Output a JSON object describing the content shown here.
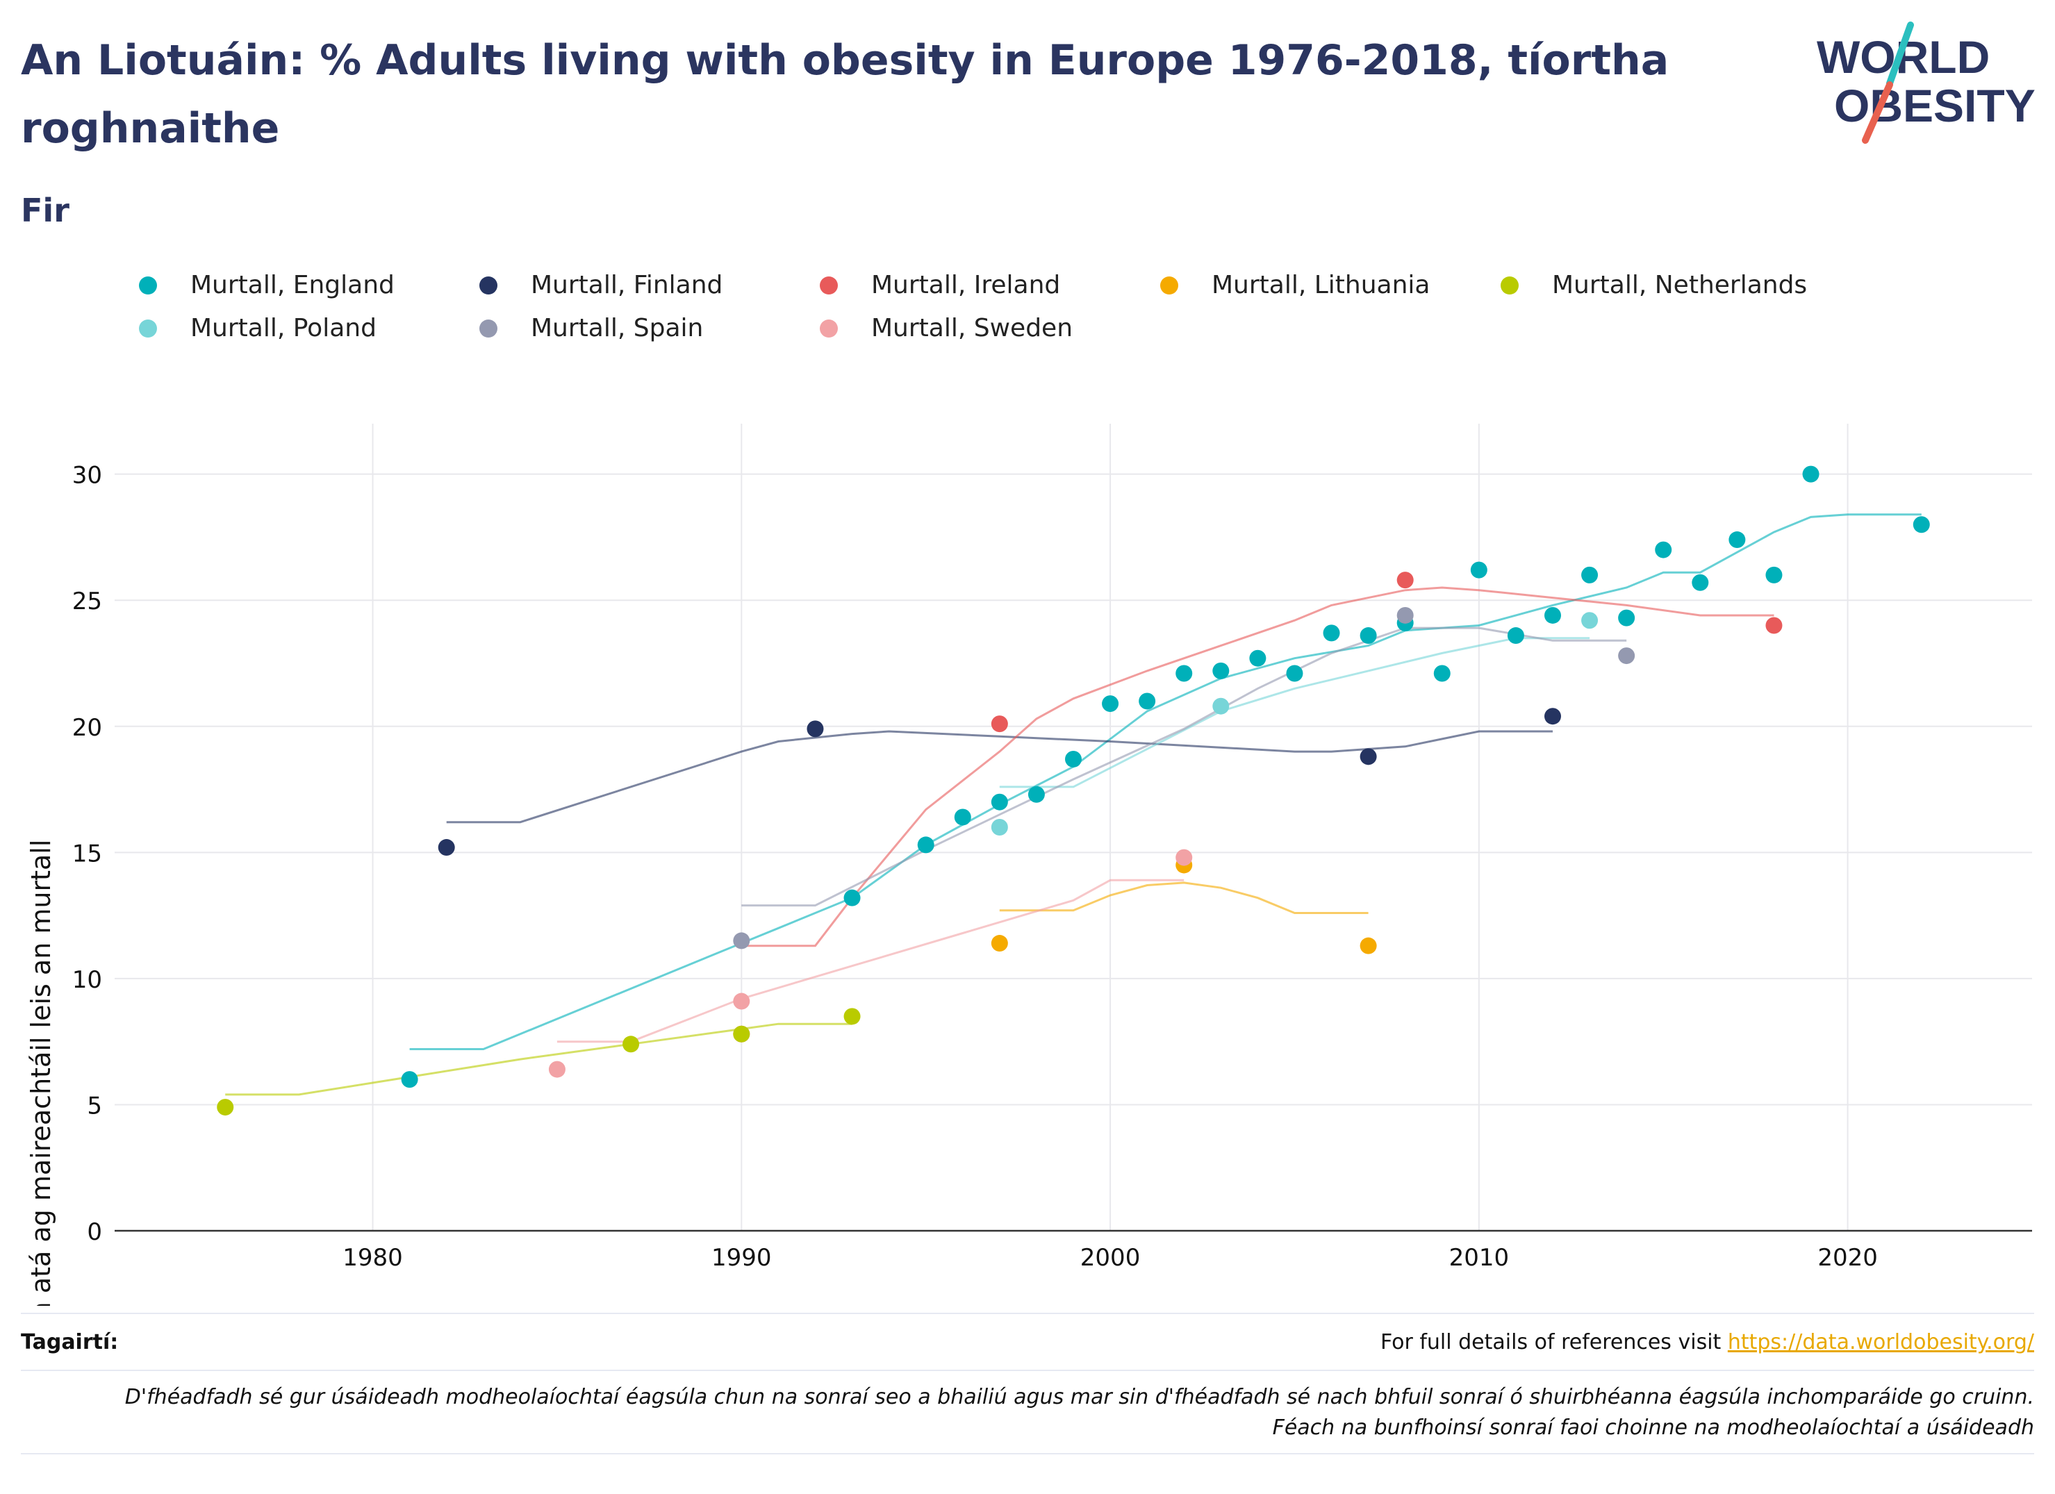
{
  "title": "An Liotuáin: % Adults living with obesity in Europe 1976-2018, tíortha roghnaithe",
  "subtitle": "Fir",
  "logo": {
    "line1": "WORLD",
    "line2": "OBESITY"
  },
  "references": {
    "label": "Tagairtí:",
    "text": "For full details of references visit ",
    "link": "https://data.worldobesity.org/"
  },
  "disclaimer": {
    "line1": "D'fhéadfadh sé gur úsáideadh modheolaíochtaí éagsúla chun na sonraí seo a bhailiú agus mar sin d'fhéadfadh sé nach bhfuil sonraí ó shuirbhéanna éagsúla inchomparáide go cruinn.",
    "line2": "Féach na bunfhoinsí sonraí faoi choinne na modheolaíochtaí a úsáideadh"
  },
  "chart_data": {
    "type": "scatter",
    "ylabel": "% na ndaoine fásta atá ag maireachtáil leis an murtall",
    "xlim": [
      1973,
      2025
    ],
    "ylim": [
      0,
      32
    ],
    "x_ticks": [
      1980,
      1990,
      2000,
      2010,
      2020
    ],
    "y_ticks": [
      0,
      5,
      10,
      15,
      20,
      25,
      30
    ],
    "grid": true,
    "legend_position": "top",
    "series": [
      {
        "name": "Murtall, England",
        "color": "#00b0b9",
        "points": [
          [
            1981,
            6.0
          ],
          [
            1993,
            13.2
          ],
          [
            1995,
            15.3
          ],
          [
            1996,
            16.4
          ],
          [
            1997,
            17.0
          ],
          [
            1998,
            17.3
          ],
          [
            1999,
            18.7
          ],
          [
            2000,
            20.9
          ],
          [
            2001,
            21.0
          ],
          [
            2002,
            22.1
          ],
          [
            2003,
            22.2
          ],
          [
            2004,
            22.7
          ],
          [
            2005,
            22.1
          ],
          [
            2006,
            23.7
          ],
          [
            2007,
            23.6
          ],
          [
            2008,
            24.1
          ],
          [
            2009,
            22.1
          ],
          [
            2010,
            26.2
          ],
          [
            2011,
            23.6
          ],
          [
            2012,
            24.4
          ],
          [
            2013,
            26.0
          ],
          [
            2014,
            24.3
          ],
          [
            2015,
            27.0
          ],
          [
            2016,
            25.7
          ],
          [
            2017,
            27.4
          ],
          [
            2018,
            26.0
          ],
          [
            2019,
            30.0
          ],
          [
            2022,
            28.0
          ]
        ],
        "trend": [
          [
            1981,
            7.2
          ],
          [
            1983,
            7.2
          ],
          [
            1990,
            11.4
          ],
          [
            1991,
            12.0
          ],
          [
            1993,
            13.2
          ],
          [
            1995,
            15.3
          ],
          [
            1997,
            16.9
          ],
          [
            1999,
            18.4
          ],
          [
            2001,
            20.6
          ],
          [
            2003,
            21.9
          ],
          [
            2005,
            22.7
          ],
          [
            2007,
            23.2
          ],
          [
            2008,
            23.8
          ],
          [
            2010,
            24.0
          ],
          [
            2012,
            24.8
          ],
          [
            2014,
            25.5
          ],
          [
            2015,
            26.1
          ],
          [
            2016,
            26.1
          ],
          [
            2018,
            27.7
          ],
          [
            2019,
            28.3
          ],
          [
            2020,
            28.4
          ],
          [
            2022,
            28.4
          ]
        ]
      },
      {
        "name": "Murtall, Finland",
        "color": "#253461",
        "points": [
          [
            1982,
            15.2
          ],
          [
            1992,
            19.9
          ],
          [
            2007,
            18.8
          ],
          [
            2012,
            20.4
          ]
        ],
        "trend": [
          [
            1982,
            16.2
          ],
          [
            1984,
            16.2
          ],
          [
            1990,
            19.0
          ],
          [
            1991,
            19.4
          ],
          [
            1993,
            19.7
          ],
          [
            1994,
            19.8
          ],
          [
            1997,
            19.6
          ],
          [
            2000,
            19.4
          ],
          [
            2005,
            19.0
          ],
          [
            2006,
            19.0
          ],
          [
            2008,
            19.2
          ],
          [
            2009,
            19.5
          ],
          [
            2010,
            19.8
          ],
          [
            2012,
            19.8
          ]
        ]
      },
      {
        "name": "Murtall, Ireland",
        "color": "#e85a5a",
        "points": [
          [
            1990,
            7.8
          ],
          [
            1997,
            20.1
          ],
          [
            2008,
            25.8
          ],
          [
            2018,
            24.0
          ]
        ],
        "trend": [
          [
            1990,
            11.3
          ],
          [
            1992,
            11.3
          ],
          [
            1993,
            13.2
          ],
          [
            1995,
            16.7
          ],
          [
            1997,
            19.0
          ],
          [
            1998,
            20.3
          ],
          [
            1999,
            21.1
          ],
          [
            2001,
            22.2
          ],
          [
            2003,
            23.2
          ],
          [
            2005,
            24.2
          ],
          [
            2006,
            24.8
          ],
          [
            2008,
            25.4
          ],
          [
            2009,
            25.5
          ],
          [
            2010,
            25.4
          ],
          [
            2012,
            25.1
          ],
          [
            2014,
            24.8
          ],
          [
            2016,
            24.4
          ],
          [
            2018,
            24.4
          ]
        ]
      },
      {
        "name": "Murtall, Lithuania",
        "color": "#f5aa00",
        "points": [
          [
            1997,
            11.4
          ],
          [
            2002,
            14.5
          ],
          [
            2007,
            11.3
          ]
        ],
        "trend": [
          [
            1997,
            12.7
          ],
          [
            1999,
            12.7
          ],
          [
            2000,
            13.3
          ],
          [
            2001,
            13.7
          ],
          [
            2002,
            13.8
          ],
          [
            2003,
            13.6
          ],
          [
            2004,
            13.2
          ],
          [
            2005,
            12.6
          ],
          [
            2007,
            12.6
          ]
        ]
      },
      {
        "name": "Murtall, Netherlands",
        "color": "#b9cb00",
        "points": [
          [
            1976,
            4.9
          ],
          [
            1987,
            7.4
          ],
          [
            1990,
            7.8
          ],
          [
            1993,
            8.5
          ]
        ],
        "trend": [
          [
            1976,
            5.4
          ],
          [
            1978,
            5.4
          ],
          [
            1981,
            6.1
          ],
          [
            1984,
            6.8
          ],
          [
            1987,
            7.4
          ],
          [
            1990,
            8.0
          ],
          [
            1991,
            8.2
          ],
          [
            1993,
            8.2
          ]
        ]
      },
      {
        "name": "Murtall, Poland",
        "color": "#77d5d8",
        "points": [
          [
            1997,
            16.0
          ],
          [
            2003,
            20.8
          ],
          [
            2013,
            24.2
          ]
        ],
        "trend": [
          [
            1997,
            17.6
          ],
          [
            1999,
            17.6
          ],
          [
            2001,
            19.1
          ],
          [
            2003,
            20.6
          ],
          [
            2005,
            21.5
          ],
          [
            2007,
            22.2
          ],
          [
            2009,
            22.9
          ],
          [
            2011,
            23.5
          ],
          [
            2013,
            23.5
          ]
        ]
      },
      {
        "name": "Murtall, Spain",
        "color": "#9499b0",
        "points": [
          [
            1990,
            11.5
          ],
          [
            2008,
            24.4
          ],
          [
            2014,
            22.8
          ]
        ],
        "trend": [
          [
            1990,
            12.9
          ],
          [
            1992,
            12.9
          ],
          [
            1995,
            15.1
          ],
          [
            1997,
            16.5
          ],
          [
            1999,
            17.9
          ],
          [
            2002,
            19.9
          ],
          [
            2004,
            21.5
          ],
          [
            2006,
            22.9
          ],
          [
            2008,
            23.9
          ],
          [
            2010,
            23.9
          ],
          [
            2012,
            23.4
          ],
          [
            2014,
            23.4
          ]
        ]
      },
      {
        "name": "Murtall, Sweden",
        "color": "#f2a2a5",
        "points": [
          [
            1985,
            6.4
          ],
          [
            1990,
            9.1
          ],
          [
            2002,
            14.8
          ]
        ],
        "trend": [
          [
            1985,
            7.5
          ],
          [
            1987,
            7.5
          ],
          [
            1990,
            9.2
          ],
          [
            1993,
            10.5
          ],
          [
            1996,
            11.8
          ],
          [
            1999,
            13.1
          ],
          [
            2000,
            13.9
          ],
          [
            2002,
            13.9
          ]
        ]
      }
    ]
  }
}
